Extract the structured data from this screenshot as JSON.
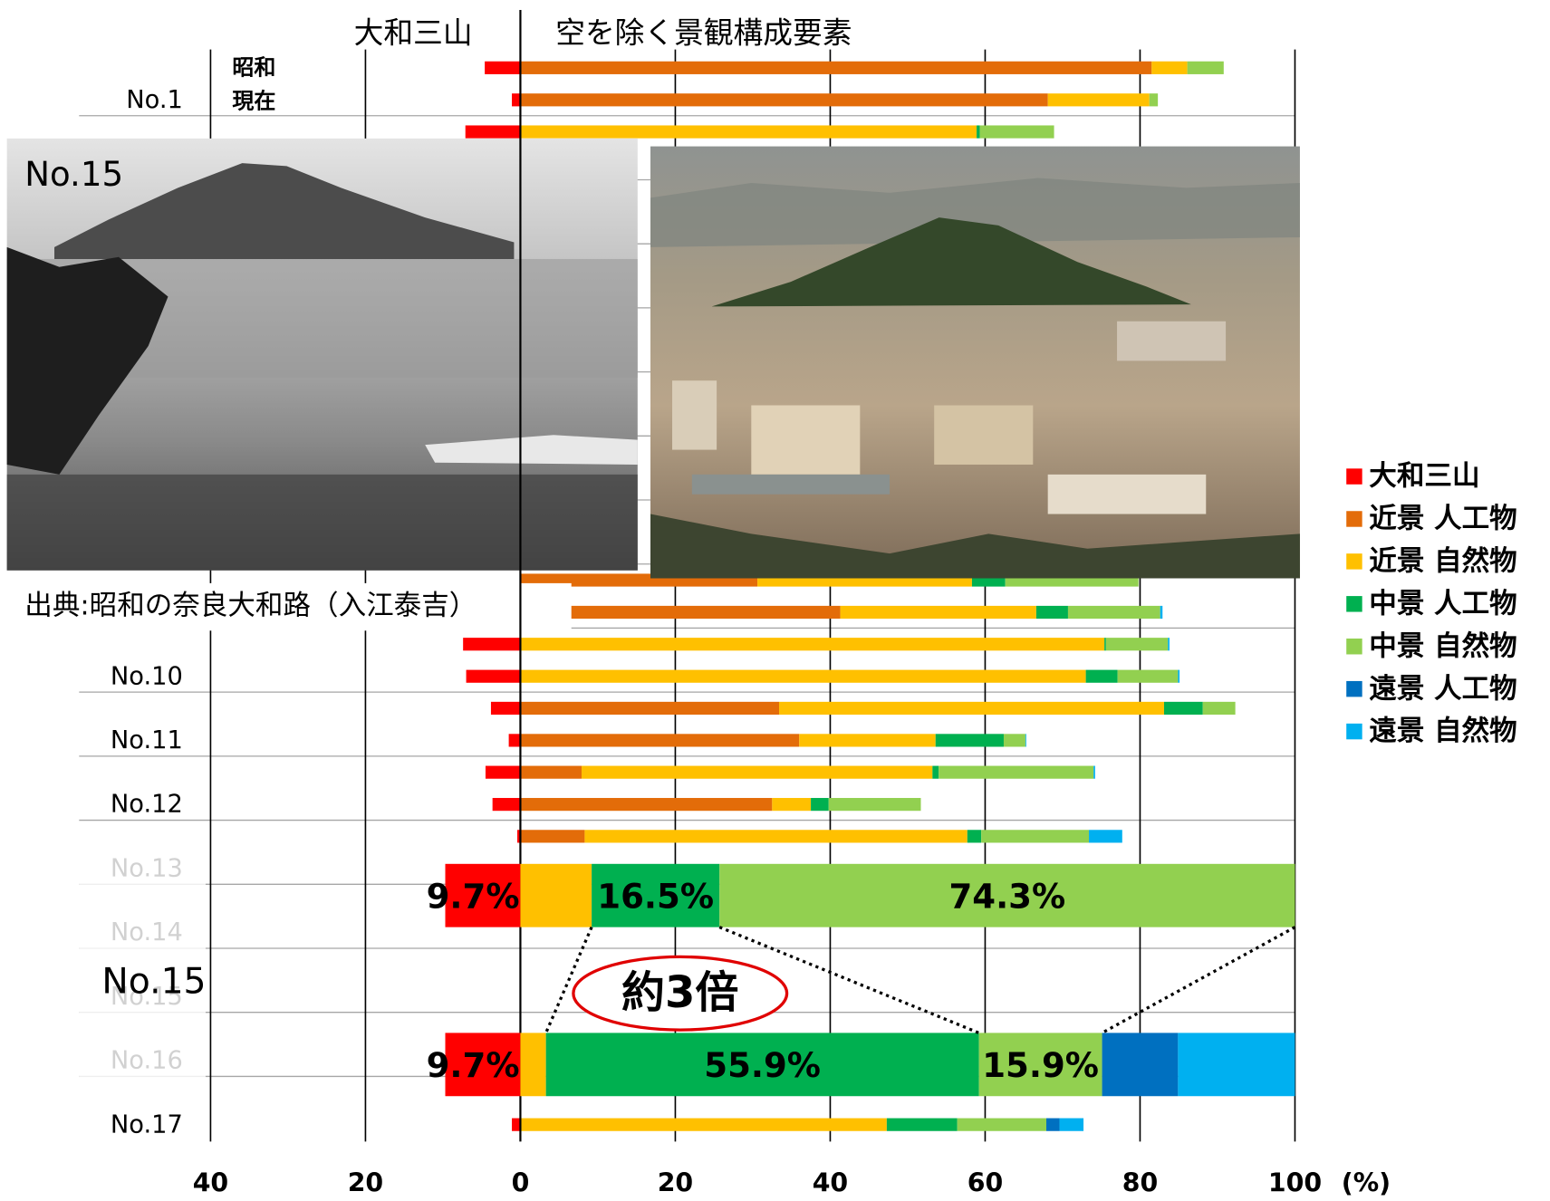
{
  "chart_data": {
    "type": "bar",
    "orientation": "horizontal",
    "stacked": true,
    "header_left": "大和三山",
    "header_right": "空を除く景観構成要素",
    "era_labels": [
      "昭和",
      "現在"
    ],
    "categories": [
      null,
      "No.1",
      null,
      null,
      null,
      null,
      null,
      null,
      null,
      null,
      null,
      null,
      null,
      null,
      null,
      null,
      null,
      null,
      null,
      "No.10",
      null,
      "No.11",
      null,
      "No.12",
      null,
      "No.13",
      null,
      "No.14",
      null,
      "No.15",
      null,
      "No.16",
      null,
      "No.17"
    ],
    "series": [
      {
        "name": "大和三山",
        "color": "#ff0000",
        "values": [
          -4.6,
          -1.1,
          -7.1,
          null,
          null,
          null,
          null,
          null,
          null,
          null,
          null,
          null,
          null,
          null,
          null,
          null,
          null,
          null,
          -7.4,
          -7.0,
          -3.8,
          -1.5,
          -4.5,
          -3.6,
          -0.4,
          null,
          null,
          null,
          null,
          null,
          null,
          null,
          null,
          -1.1
        ]
      },
      {
        "name": "近景 人工物",
        "color": "#e36c09",
        "values": [
          81.5,
          68.1,
          0,
          null,
          null,
          null,
          null,
          null,
          null,
          null,
          null,
          null,
          null,
          null,
          null,
          null,
          30.6,
          41.3,
          0,
          0,
          33.4,
          36.0,
          7.9,
          32.5,
          8.3,
          null,
          null,
          null,
          null,
          null,
          null,
          null,
          null,
          0
        ]
      },
      {
        "name": "近景 自然物",
        "color": "#ffc000",
        "values": [
          4.6,
          13.1,
          58.9,
          null,
          null,
          null,
          null,
          null,
          null,
          null,
          null,
          null,
          null,
          null,
          null,
          null,
          27.7,
          25.3,
          75.4,
          73.0,
          49.7,
          17.6,
          45.3,
          5.0,
          49.4,
          null,
          null,
          null,
          null,
          null,
          null,
          null,
          null,
          47.3
        ]
      },
      {
        "name": "中景 人工物",
        "color": "#00b050",
        "values": [
          0,
          0,
          0.4,
          null,
          null,
          null,
          null,
          null,
          null,
          null,
          null,
          null,
          null,
          null,
          null,
          null,
          4.3,
          4.1,
          0.2,
          4.1,
          5.0,
          8.8,
          0.8,
          2.3,
          1.8,
          null,
          null,
          null,
          null,
          null,
          null,
          null,
          null,
          9.1
        ]
      },
      {
        "name": "中景 自然物",
        "color": "#92d050",
        "values": [
          4.7,
          1.1,
          9.6,
          null,
          null,
          null,
          null,
          null,
          null,
          null,
          null,
          null,
          null,
          null,
          null,
          null,
          17.2,
          11.9,
          8.0,
          7.8,
          4.2,
          2.8,
          20.0,
          11.9,
          13.9,
          null,
          null,
          null,
          null,
          null,
          null,
          null,
          null,
          11.5
        ]
      },
      {
        "name": "遠景 人工物",
        "color": "#0070c0",
        "values": [
          0,
          0,
          0,
          null,
          null,
          null,
          null,
          null,
          null,
          null,
          null,
          null,
          null,
          null,
          0,
          0,
          0,
          0,
          0,
          0,
          0,
          0,
          0,
          0,
          0,
          null,
          null,
          null,
          null,
          null,
          null,
          null,
          null,
          1.7
        ]
      },
      {
        "name": "遠景 自然物",
        "color": "#00b0f0",
        "values": [
          0,
          0,
          0,
          null,
          null,
          null,
          null,
          null,
          null,
          null,
          null,
          null,
          null,
          null,
          null,
          null,
          0,
          0.3,
          0.2,
          0.2,
          0,
          0.1,
          0.2,
          0,
          4.3,
          null,
          null,
          null,
          null,
          null,
          null,
          null,
          null,
          3.1
        ]
      }
    ],
    "xlim": [
      -40,
      100
    ],
    "xticks": [
      {
        "value": -40,
        "label": "40"
      },
      {
        "value": -20,
        "label": "20"
      },
      0,
      20,
      40,
      60,
      80,
      100
    ],
    "x_unit": "(%)",
    "grid": true,
    "legend": "right",
    "zoom": {
      "label": "No.15",
      "annotation": "約3倍",
      "bars": [
        {
          "values": [
            -9.7,
            0,
            9.2,
            16.5,
            74.3,
            0,
            0
          ],
          "value_labels": [
            "9.7%",
            null,
            null,
            "16.5%",
            "74.3%",
            null,
            null
          ]
        },
        {
          "values": [
            -9.7,
            0,
            3.3,
            55.9,
            15.9,
            9.8,
            15.1
          ],
          "value_labels": [
            "9.7%",
            null,
            null,
            "55.9%",
            "15.9%",
            null,
            null
          ]
        }
      ]
    }
  },
  "photo": {
    "label": "No.15",
    "caption": "出典:昭和の奈良大和路（入江泰吉）"
  }
}
